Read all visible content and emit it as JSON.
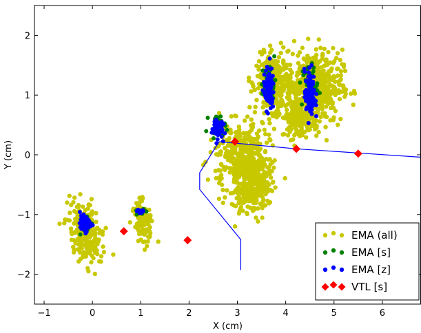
{
  "chart_data": {
    "type": "scatter",
    "xlabel": "X (cm)",
    "ylabel": "Y (cm)",
    "xlim": [
      -1.2,
      6.8
    ],
    "ylim": [
      -2.5,
      2.5
    ],
    "xticks": [
      -1,
      0,
      1,
      2,
      3,
      4,
      5,
      6
    ],
    "yticks": [
      -2,
      -1,
      0,
      1,
      2
    ],
    "xtick_labels": [
      "−1",
      "0",
      "1",
      "2",
      "3",
      "4",
      "5",
      "6"
    ],
    "ytick_labels": [
      "−2",
      "−1",
      "0",
      "1",
      "2"
    ],
    "grid": false,
    "legend_position": "bottom-right",
    "colors": {
      "ema_all": "#c8c800",
      "ema_s": "#008000",
      "ema_z": "#0000ff",
      "vtl_s": "#ff0000",
      "path": "#0000ff"
    },
    "series": [
      {
        "name": "EMA (all)",
        "marker": "circle",
        "clusters": [
          {
            "cx": -0.15,
            "cy": -1.3,
            "rx": 0.28,
            "ry": 0.5,
            "rot": 20,
            "n": 240
          },
          {
            "cx": 1.05,
            "cy": -1.1,
            "rx": 0.17,
            "ry": 0.3,
            "rot": 15,
            "n": 110
          },
          {
            "cx": 3.15,
            "cy": -0.15,
            "rx": 0.5,
            "ry": 0.62,
            "rot": 25,
            "n": 500
          },
          {
            "cx": 3.3,
            "cy": -0.65,
            "rx": 0.3,
            "ry": 0.28,
            "rot": 0,
            "n": 130
          },
          {
            "cx": 3.75,
            "cy": 1.2,
            "rx": 0.32,
            "ry": 0.42,
            "rot": 0,
            "n": 320
          },
          {
            "cx": 4.6,
            "cy": 1.15,
            "rx": 0.52,
            "ry": 0.55,
            "rot": 0,
            "n": 480
          },
          {
            "cx": 4.3,
            "cy": 0.6,
            "rx": 0.35,
            "ry": 0.3,
            "rot": 0,
            "n": 140
          }
        ]
      },
      {
        "name": "EMA [s]",
        "marker": "circle",
        "clusters": [
          {
            "cx": -0.15,
            "cy": -1.15,
            "rx": 0.12,
            "ry": 0.14,
            "rot": 0,
            "n": 30
          },
          {
            "cx": 1.0,
            "cy": -0.95,
            "rx": 0.08,
            "ry": 0.05,
            "rot": 0,
            "n": 14
          },
          {
            "cx": 2.6,
            "cy": 0.5,
            "rx": 0.16,
            "ry": 0.14,
            "rot": 0,
            "n": 28
          },
          {
            "cx": 3.65,
            "cy": 1.2,
            "rx": 0.13,
            "ry": 0.3,
            "rot": 0,
            "n": 50
          },
          {
            "cx": 4.5,
            "cy": 1.15,
            "rx": 0.15,
            "ry": 0.34,
            "rot": 0,
            "n": 55
          }
        ]
      },
      {
        "name": "EMA [z]",
        "marker": "circle",
        "clusters": [
          {
            "cx": -0.15,
            "cy": -1.15,
            "rx": 0.1,
            "ry": 0.12,
            "rot": 0,
            "n": 55
          },
          {
            "cx": 1.0,
            "cy": -0.95,
            "rx": 0.07,
            "ry": 0.04,
            "rot": 0,
            "n": 18
          },
          {
            "cx": 2.58,
            "cy": 0.45,
            "rx": 0.1,
            "ry": 0.16,
            "rot": 0,
            "n": 55
          },
          {
            "cx": 3.65,
            "cy": 1.1,
            "rx": 0.1,
            "ry": 0.32,
            "rot": 0,
            "n": 85
          },
          {
            "cx": 4.5,
            "cy": 1.0,
            "rx": 0.1,
            "ry": 0.38,
            "rot": 0,
            "n": 90
          }
        ]
      },
      {
        "name": "VTL [s]",
        "marker": "diamond",
        "points": [
          {
            "x": 0.65,
            "y": -1.28
          },
          {
            "x": 1.97,
            "y": -1.43
          },
          {
            "x": 2.95,
            "y": 0.22
          },
          {
            "x": 4.22,
            "y": 0.1
          },
          {
            "x": 5.5,
            "y": 0.02
          }
        ]
      }
    ],
    "path": [
      {
        "x": 3.07,
        "y": -1.93
      },
      {
        "x": 3.07,
        "y": -1.42
      },
      {
        "x": 2.22,
        "y": -0.58
      },
      {
        "x": 2.22,
        "y": -0.3
      },
      {
        "x": 2.62,
        "y": 0.22
      },
      {
        "x": 4.22,
        "y": 0.1
      },
      {
        "x": 6.8,
        "y": -0.04
      }
    ]
  }
}
